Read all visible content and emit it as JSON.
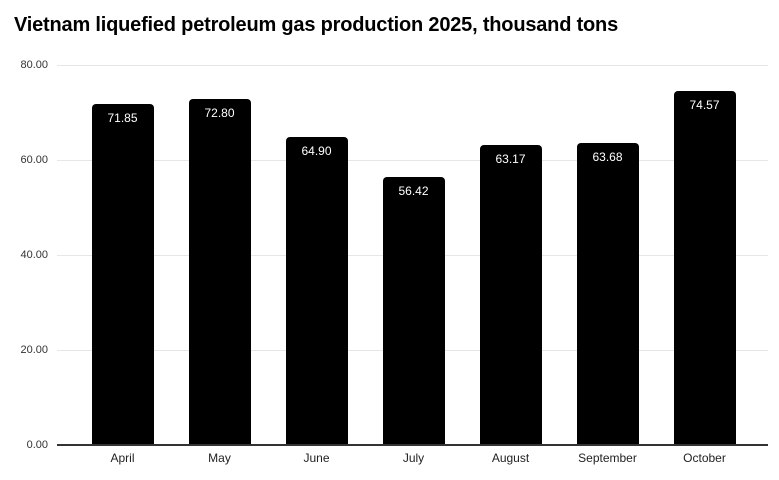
{
  "chart_data": {
    "type": "bar",
    "title": "Vietnam liquefied petroleum gas production 2025, thousand tons",
    "categories": [
      "April",
      "May",
      "June",
      "July",
      "August",
      "September",
      "October"
    ],
    "values": [
      71.85,
      72.8,
      64.9,
      56.42,
      63.17,
      63.68,
      74.57
    ],
    "value_labels": [
      "71.85",
      "72.80",
      "64.90",
      "56.42",
      "63.17",
      "63.68",
      "74.57"
    ],
    "xlabel": "",
    "ylabel": "",
    "ylim": [
      0,
      80
    ],
    "yticks": [
      0,
      20,
      40,
      60,
      80
    ],
    "ytick_labels": [
      "0.00",
      "20.00",
      "40.00",
      "60.00",
      "80.00"
    ],
    "grid": "horizontal-only",
    "legend": "none",
    "value_label_position": "inside-top",
    "colors": {
      "background": "#ffffff",
      "bar": "#000000",
      "bar_label": "#ffffff",
      "gridline": "#e6e6e6",
      "axis_line": "#333333",
      "tick_label": "#333333",
      "title": "#000000"
    }
  }
}
